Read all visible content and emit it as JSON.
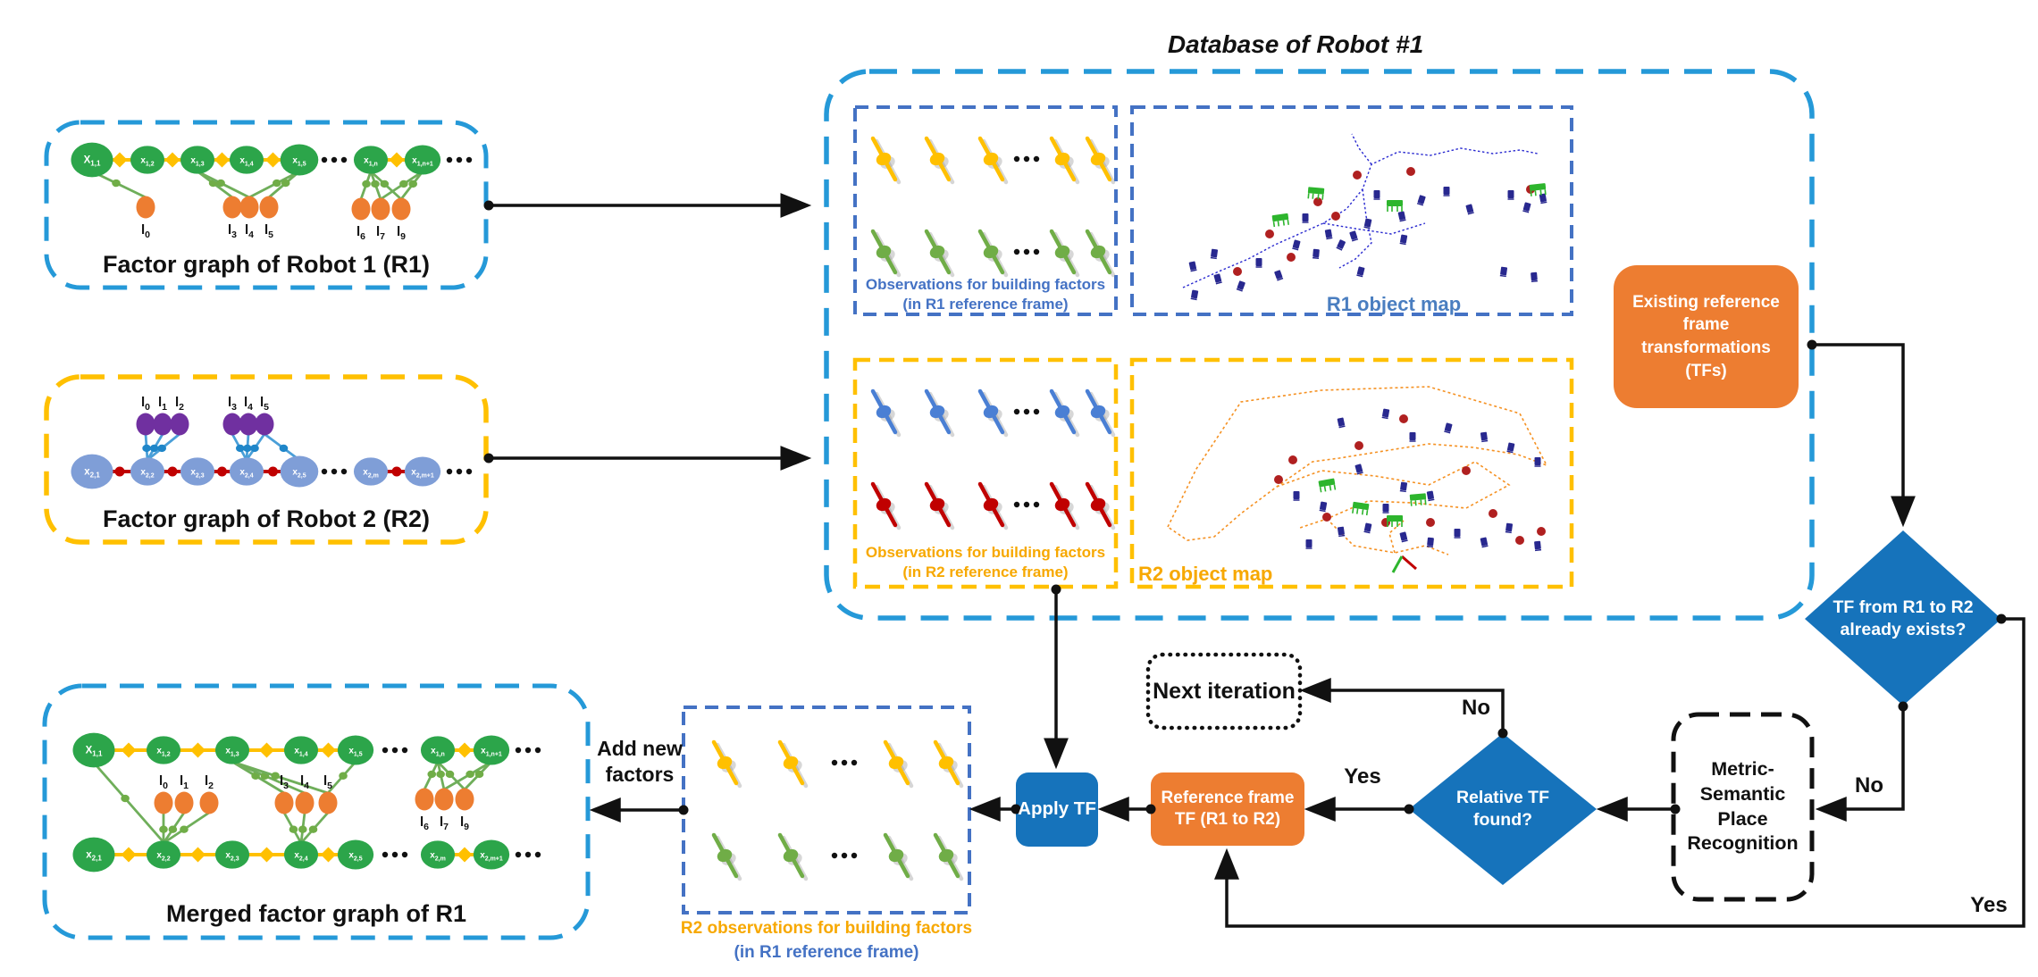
{
  "database": {
    "title": "Database of Robot #1",
    "r1_obs_caption_line1": "Observations for building factors",
    "r1_obs_caption_line2": "(in R1 reference frame)",
    "r1_map_label": "R1 object map",
    "r2_obs_caption_line1": "Observations for building factors",
    "r2_obs_caption_line2": "(in R2 reference frame)",
    "r2_map_label": "R2 object map"
  },
  "graphs": {
    "r1": {
      "caption": "Factor graph of Robot 1 (R1)",
      "chain": [
        "X|1,1",
        "x|1,2",
        "x|1,3",
        "x|1,4",
        "x|1,5",
        "x|1,n",
        "x|1,n+1"
      ],
      "landmarks": [
        "l|0",
        "l|3",
        "l|4",
        "l|5",
        "l|6",
        "l|7",
        "l|9"
      ],
      "ellipsis": "..."
    },
    "r2": {
      "caption": "Factor graph of Robot 2 (R2)",
      "chain": [
        "x|2,1",
        "x|2,2",
        "x|2,3",
        "x|2,4",
        "x|2,5",
        "x|2,m",
        "x|2,m+1"
      ],
      "landmarks": [
        "l|0",
        "l|1",
        "l|2",
        "l|3",
        "l|4",
        "l|5"
      ],
      "ellipsis": "..."
    },
    "merged": {
      "caption": "Merged factor graph of R1",
      "chain_top": [
        "X|1,1",
        "x|1,2",
        "x|1,3",
        "x|1,4",
        "x|1,5",
        "x|1,n",
        "x|1,n+1"
      ],
      "chain_bottom": [
        "x|2,1",
        "x|2,2",
        "x|2,3",
        "x|2,4",
        "x|2,5",
        "x|2,m",
        "x|2,m+1"
      ],
      "landmarks": [
        "l|0",
        "l|1",
        "l|2",
        "l|3",
        "l|4",
        "l|5",
        "l|6",
        "l|7",
        "l|9"
      ],
      "ellipsis": "..."
    }
  },
  "flow": {
    "existing_tfs": "Existing reference frame transformations (TFs)",
    "tf_exists_question": "TF from R1 to R2 already exists?",
    "metric_semantic": "Metric-Semantic Place Recognition",
    "relative_tf_question": "Relative TF found?",
    "next_iteration": "Next iteration",
    "reference_frame_tf": "Reference frame TF (R1 to R2)",
    "apply_tf": "Apply TF",
    "add_new_factors": "Add new factors",
    "label_yes_relative": "Yes",
    "label_no_next": "No",
    "label_no_exists": "No",
    "label_yes_exists": "Yes",
    "r2_obs_new_caption_line1": "R2 observations for building factors",
    "r2_obs_new_caption_line2": "(in R1 reference frame)"
  },
  "colors": {
    "flow_blue": "#1673bb",
    "flow_orange": "#ed7d31",
    "dash_cyan_blue": "#2599d8",
    "dash_royal_blue": "#4472c4",
    "dash_yellow": "#ffc000",
    "green_node": "#2ca54a",
    "soft_blue_node": "#7f9ed7",
    "purple_landmark": "#7030a0",
    "orange_landmark": "#ed7d31",
    "red_factor": "#c00000",
    "yellow_factor": "#ffc000",
    "green_factor": "#70ad47",
    "blue_factor": "#1f86c9"
  }
}
